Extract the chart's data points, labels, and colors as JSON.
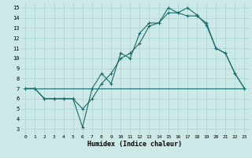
{
  "xlabel": "Humidex (Indice chaleur)",
  "xlim": [
    -0.5,
    23.5
  ],
  "ylim": [
    2.5,
    15.5
  ],
  "yticks": [
    3,
    4,
    5,
    6,
    7,
    8,
    9,
    10,
    11,
    12,
    13,
    14,
    15
  ],
  "xticks": [
    0,
    1,
    2,
    3,
    4,
    5,
    6,
    7,
    8,
    9,
    10,
    11,
    12,
    13,
    14,
    15,
    16,
    17,
    18,
    19,
    20,
    21,
    22,
    23
  ],
  "bg_color": "#cce9e7",
  "grid_color": "#a8d4d1",
  "line_color": "#1a6b6b",
  "line1_x": [
    0,
    1,
    2,
    3,
    4,
    5,
    6,
    7,
    8,
    9,
    10,
    11,
    12,
    13,
    14,
    15,
    16,
    17,
    18,
    19,
    20,
    21,
    22,
    23
  ],
  "line1_y": [
    7,
    7,
    6,
    6,
    6,
    6,
    3.2,
    7,
    8.5,
    7.5,
    10.5,
    10,
    12.5,
    13.5,
    13.5,
    15,
    14.5,
    15,
    14.3,
    13.3,
    11,
    10.5,
    8.5,
    7
  ],
  "line2_x": [
    0,
    1,
    2,
    3,
    4,
    5,
    6,
    7,
    8,
    9,
    10,
    11,
    12,
    13,
    14,
    15,
    16,
    17,
    18,
    19,
    20,
    21,
    22,
    23
  ],
  "line2_y": [
    7,
    7,
    6,
    6,
    6,
    6,
    5,
    6,
    7.5,
    8.5,
    10,
    10.5,
    11.5,
    13.2,
    13.5,
    14.5,
    14.5,
    14.2,
    14.2,
    13.5,
    11,
    10.5,
    8.5,
    7
  ],
  "line3_x": [
    0,
    1,
    2,
    3,
    4,
    5,
    6,
    7,
    8,
    9,
    10,
    11,
    12,
    13,
    14,
    15,
    16,
    17,
    18,
    19,
    20,
    21,
    22,
    23
  ],
  "line3_y": [
    7,
    7,
    7,
    7,
    7,
    7,
    7,
    7,
    7,
    7,
    7,
    7,
    7,
    7,
    7,
    7,
    7,
    7,
    7,
    7,
    7,
    7,
    7,
    7
  ]
}
